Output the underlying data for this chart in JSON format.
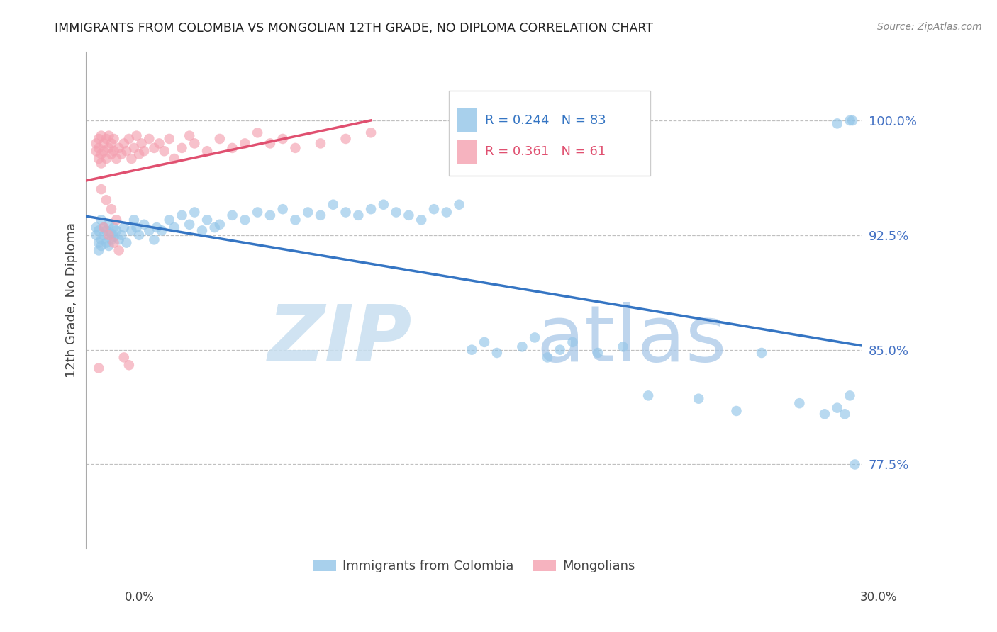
{
  "title": "IMMIGRANTS FROM COLOMBIA VS MONGOLIAN 12TH GRADE, NO DIPLOMA CORRELATION CHART",
  "source": "Source: ZipAtlas.com",
  "ylabel": "12th Grade, No Diploma",
  "ymin": 0.72,
  "ymax": 1.045,
  "xmin": -0.003,
  "xmax": 0.305,
  "colombia_color": "#93c5e8",
  "mongolia_color": "#f4a0b0",
  "colombia_line_color": "#3575c3",
  "mongolia_line_color": "#e05070",
  "r_colombia": 0.244,
  "n_colombia": 83,
  "r_mongolia": 0.361,
  "n_mongolia": 61,
  "ytick_positions": [
    0.775,
    0.85,
    0.925,
    1.0
  ],
  "ytick_labels": [
    "77.5%",
    "85.0%",
    "92.5%",
    "100.0%"
  ],
  "colombia_x": [
    0.001,
    0.001,
    0.002,
    0.002,
    0.002,
    0.003,
    0.003,
    0.003,
    0.004,
    0.004,
    0.005,
    0.005,
    0.006,
    0.006,
    0.007,
    0.007,
    0.008,
    0.008,
    0.009,
    0.01,
    0.011,
    0.012,
    0.013,
    0.015,
    0.016,
    0.017,
    0.018,
    0.02,
    0.022,
    0.024,
    0.025,
    0.027,
    0.03,
    0.032,
    0.035,
    0.038,
    0.04,
    0.043,
    0.045,
    0.048,
    0.05,
    0.055,
    0.06,
    0.065,
    0.07,
    0.075,
    0.08,
    0.085,
    0.09,
    0.095,
    0.1,
    0.105,
    0.11,
    0.115,
    0.12,
    0.125,
    0.13,
    0.135,
    0.14,
    0.145,
    0.15,
    0.155,
    0.16,
    0.17,
    0.175,
    0.18,
    0.185,
    0.19,
    0.2,
    0.21,
    0.22,
    0.24,
    0.255,
    0.265,
    0.28,
    0.29,
    0.295,
    0.298,
    0.3,
    0.301,
    0.295,
    0.3,
    0.302
  ],
  "colombia_y": [
    0.93,
    0.925,
    0.928,
    0.92,
    0.915,
    0.935,
    0.922,
    0.918,
    0.93,
    0.925,
    0.928,
    0.92,
    0.932,
    0.918,
    0.926,
    0.922,
    0.93,
    0.924,
    0.928,
    0.922,
    0.925,
    0.93,
    0.92,
    0.928,
    0.935,
    0.93,
    0.925,
    0.932,
    0.928,
    0.922,
    0.93,
    0.928,
    0.935,
    0.93,
    0.938,
    0.932,
    0.94,
    0.928,
    0.935,
    0.93,
    0.932,
    0.938,
    0.935,
    0.94,
    0.938,
    0.942,
    0.935,
    0.94,
    0.938,
    0.945,
    0.94,
    0.938,
    0.942,
    0.945,
    0.94,
    0.938,
    0.935,
    0.942,
    0.94,
    0.945,
    0.85,
    0.855,
    0.848,
    0.852,
    0.858,
    0.845,
    0.85,
    0.855,
    0.848,
    0.852,
    0.82,
    0.818,
    0.81,
    0.848,
    0.815,
    0.808,
    0.812,
    0.808,
    0.82,
    1.0,
    0.998,
    1.0,
    0.775
  ],
  "mongolia_x": [
    0.001,
    0.001,
    0.002,
    0.002,
    0.002,
    0.003,
    0.003,
    0.003,
    0.004,
    0.004,
    0.005,
    0.005,
    0.006,
    0.006,
    0.007,
    0.007,
    0.008,
    0.008,
    0.009,
    0.01,
    0.011,
    0.012,
    0.013,
    0.014,
    0.015,
    0.016,
    0.017,
    0.018,
    0.019,
    0.02,
    0.022,
    0.024,
    0.026,
    0.028,
    0.03,
    0.032,
    0.035,
    0.038,
    0.04,
    0.045,
    0.05,
    0.055,
    0.06,
    0.065,
    0.07,
    0.075,
    0.08,
    0.09,
    0.1,
    0.11,
    0.003,
    0.005,
    0.007,
    0.009,
    0.004,
    0.006,
    0.008,
    0.01,
    0.012,
    0.014,
    0.002
  ],
  "mongolia_y": [
    0.985,
    0.98,
    0.988,
    0.975,
    0.982,
    0.99,
    0.978,
    0.972,
    0.985,
    0.98,
    0.988,
    0.975,
    0.982,
    0.99,
    0.978,
    0.985,
    0.98,
    0.988,
    0.975,
    0.982,
    0.978,
    0.985,
    0.98,
    0.988,
    0.975,
    0.982,
    0.99,
    0.978,
    0.985,
    0.98,
    0.988,
    0.982,
    0.985,
    0.98,
    0.988,
    0.975,
    0.982,
    0.99,
    0.985,
    0.98,
    0.988,
    0.982,
    0.985,
    0.992,
    0.985,
    0.988,
    0.982,
    0.985,
    0.988,
    0.992,
    0.955,
    0.948,
    0.942,
    0.935,
    0.93,
    0.925,
    0.92,
    0.915,
    0.845,
    0.84,
    0.838
  ]
}
